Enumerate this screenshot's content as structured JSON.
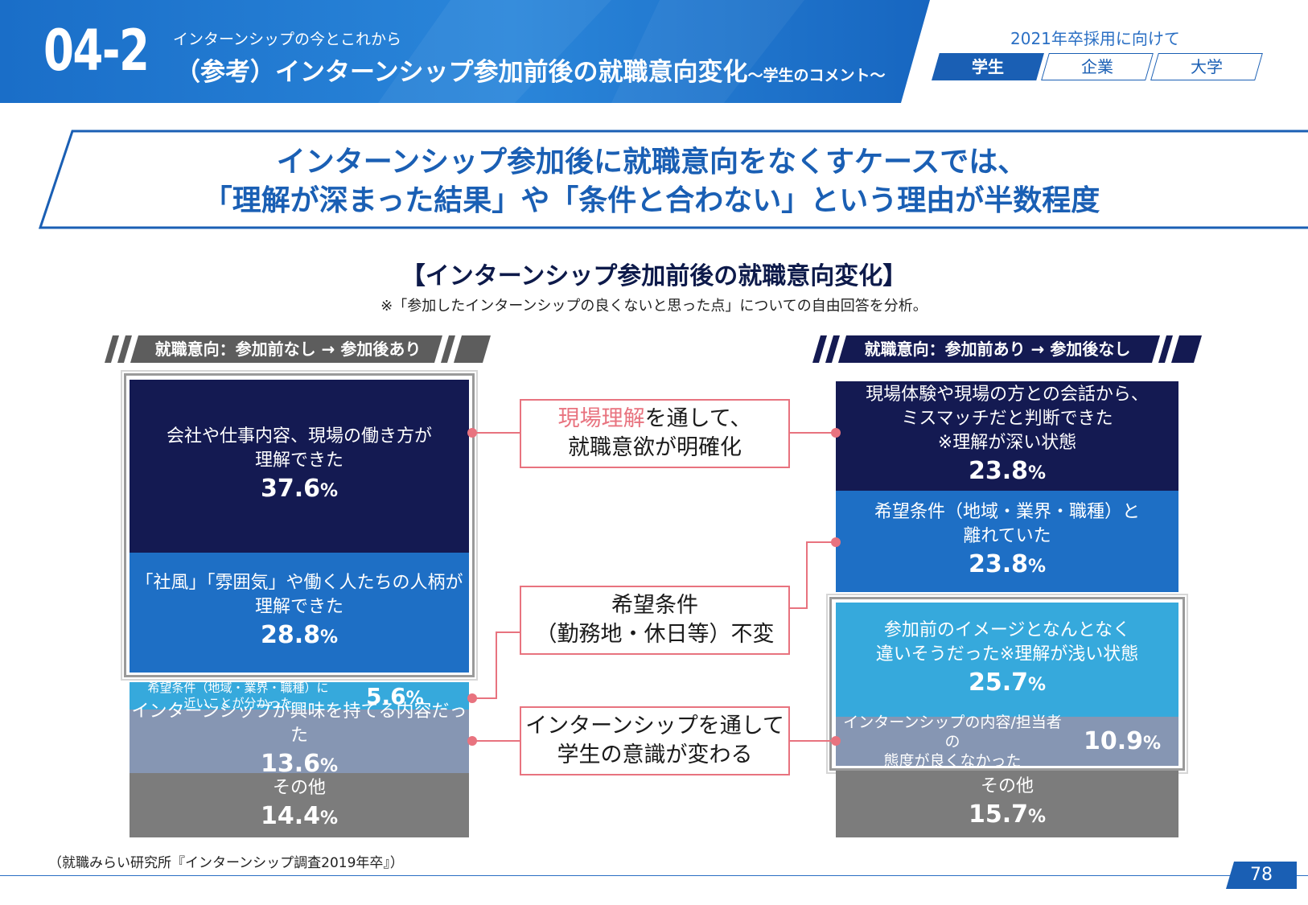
{
  "header": {
    "section_number": "04-2",
    "subtitle": "インターンシップの今とこれから",
    "title": "（参考）インターンシップ参加前後の就職意向変化",
    "title_suffix": "～学生のコメント～",
    "year_label": "2021年卒採用に向けて",
    "tabs": [
      {
        "label": "学生",
        "active": true
      },
      {
        "label": "企業",
        "active": false
      },
      {
        "label": "大学",
        "active": false
      }
    ]
  },
  "headline": {
    "line1": "インターンシップ参加後に就職意向をなくすケースでは、",
    "line2": "「理解が深まった結果」や「条件と合わない」という理由が半数程度"
  },
  "chart": {
    "title": "【インターンシップ参加前後の就職意向変化】",
    "note": "※「参加したインターンシップの良くないと思った点」についての自由回答を分析。"
  },
  "left_column": {
    "banner": "就職意向：参加前なし → 参加後あり",
    "items": [
      {
        "label1": "会社や仕事内容、現場の働き方が",
        "label2": "理解できた",
        "value": "37.6",
        "unit": "%"
      },
      {
        "label1": "「社風」「雰囲気」や働く人たちの人柄が",
        "label2": "理解できた",
        "value": "28.8",
        "unit": "%"
      },
      {
        "label1": "希望条件（地域・業界・職種）に",
        "label2": "近いことが分かった",
        "value": "5.6",
        "unit": "%"
      },
      {
        "label1": "インターンシップが興味を持てる内容だった",
        "value": "13.6",
        "unit": "%"
      },
      {
        "label1": "その他",
        "value": "14.4",
        "unit": "%"
      }
    ]
  },
  "right_column": {
    "banner": "就職意向：参加前あり → 参加後なし",
    "items": [
      {
        "label1": "現場体験や現場の方との会話から、",
        "label2": "ミスマッチだと判断できた",
        "label3": "※理解が深い状態",
        "value": "23.8",
        "unit": "%"
      },
      {
        "label1": "希望条件（地域・業界・職種）と",
        "label2": "離れていた",
        "value": "23.8",
        "unit": "%"
      },
      {
        "label1": "参加前のイメージとなんとなく",
        "label2": "違いそうだった※理解が浅い状態",
        "value": "25.7",
        "unit": "%"
      },
      {
        "label1": "インターンシップの内容/担当者の",
        "label2": "態度が良くなかった",
        "value": "10.9",
        "unit": "%"
      },
      {
        "label1": "その他",
        "value": "15.7",
        "unit": "%"
      }
    ]
  },
  "callouts": [
    {
      "highlight": "現場理解",
      "rest": "を通して、",
      "line2": "就職意欲が明確化"
    },
    {
      "line1": "希望条件",
      "line2": "（勤務地・休日等）不変"
    },
    {
      "line1": "インターンシップを通して",
      "line2": "学生の意識が変わる"
    }
  ],
  "source": "（就職みらい研究所『インターンシップ調査2019年卒』）",
  "page_number": "78",
  "colors": {
    "header_blue": "#1a6ec8",
    "navy": "#141a52",
    "mid_blue": "#1e6fc5",
    "light_blue": "#36a9dc",
    "slate": "#8696b3",
    "gray": "#7c7c7c",
    "callout_border": "#e8737f"
  }
}
